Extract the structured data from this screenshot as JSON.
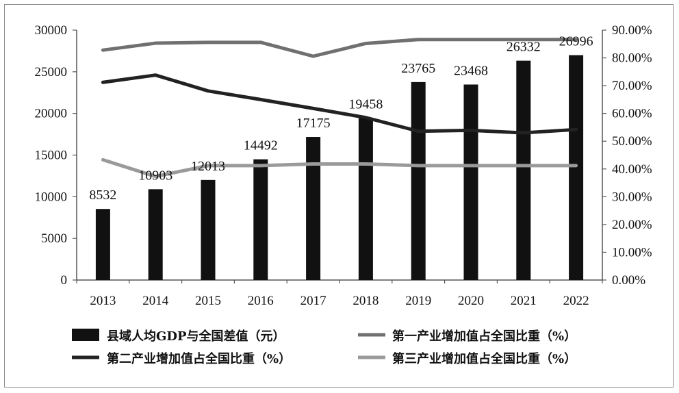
{
  "chart_data": {
    "type": "bar",
    "categories": [
      "2013",
      "2014",
      "2015",
      "2016",
      "2017",
      "2018",
      "2019",
      "2020",
      "2021",
      "2022"
    ],
    "title": "",
    "xlabel": "",
    "ylabel": "",
    "ylim": [
      0,
      30000
    ],
    "y_ticks": [
      "0",
      "5000",
      "10000",
      "15000",
      "20000",
      "25000",
      "30000"
    ],
    "y2lim": [
      0,
      90
    ],
    "y2_ticks": [
      "0.00%",
      "10.00%",
      "20.00%",
      "30.00%",
      "40.00%",
      "50.00%",
      "60.00%",
      "70.00%",
      "80.00%",
      "90.00%"
    ],
    "grid": false,
    "legend_position": "bottom",
    "bar_series": {
      "name": "县域人均GDP与全国差值（元）",
      "values": [
        8532,
        10903,
        12013,
        14492,
        17175,
        19458,
        23765,
        23468,
        26332,
        26996
      ],
      "labels": [
        "8532",
        "10903",
        "12013",
        "14492",
        "17175",
        "19458",
        "23765",
        "23468",
        "26332",
        "26996"
      ],
      "color": "#111111"
    },
    "line_series": [
      {
        "name": "第一产业增加值占全国比重（%）",
        "axis": "right",
        "values": [
          82.8,
          85.3,
          85.6,
          85.6,
          80.6,
          85.2,
          86.6,
          86.6,
          86.6,
          86.6
        ],
        "color": "#707070"
      },
      {
        "name": "第二产业增加值占全国比重（%）",
        "axis": "right",
        "values": [
          71.2,
          73.8,
          68.1,
          65.0,
          61.8,
          58.5,
          53.6,
          53.9,
          53.0,
          54.2
        ],
        "color": "#222222"
      },
      {
        "name": "第三产业增加值占全国比重（%）",
        "axis": "right",
        "values": [
          43.3,
          37.3,
          41.2,
          41.2,
          41.8,
          41.8,
          41.2,
          41.2,
          41.2,
          41.2
        ],
        "color": "#9a9a9a"
      }
    ]
  }
}
